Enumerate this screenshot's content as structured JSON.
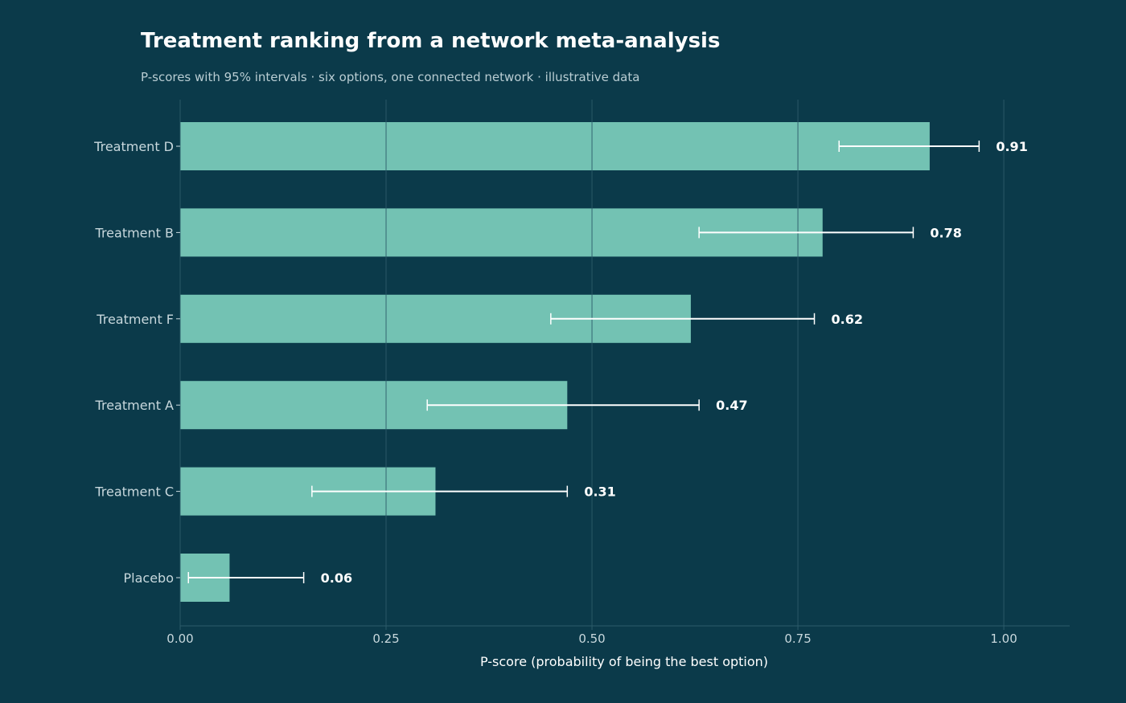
{
  "colors": {
    "background": "#0b3a4a",
    "bar": "#73c2b3",
    "error_bar": "#ffffff",
    "grid": "#2d5c6a",
    "text": "#ffffff",
    "muted_text": "#c8d8dd"
  },
  "chart_data": {
    "type": "bar",
    "orientation": "horizontal",
    "title": "Treatment ranking from a network meta-analysis",
    "subtitle": "P-scores with 95% intervals  ·  six options, one connected network  ·  illustrative data",
    "xlabel": "P-score (probability of being the best option)",
    "ylabel": "",
    "xlim": [
      0,
      1.08
    ],
    "xticks": [
      0.0,
      0.25,
      0.5,
      0.75,
      1.0
    ],
    "xtick_labels": [
      "0.00",
      "0.25",
      "0.50",
      "0.75",
      "1.00"
    ],
    "grid": "vertical",
    "categories": [
      "Treatment D",
      "Treatment B",
      "Treatment F",
      "Treatment A",
      "Treatment C",
      "Placebo"
    ],
    "values": [
      0.91,
      0.78,
      0.62,
      0.47,
      0.31,
      0.06
    ],
    "value_labels": [
      "0.91",
      "0.78",
      "0.62",
      "0.47",
      "0.31",
      "0.06"
    ],
    "ci_low": [
      0.8,
      0.63,
      0.45,
      0.3,
      0.16,
      0.01
    ],
    "ci_high": [
      0.97,
      0.89,
      0.77,
      0.63,
      0.47,
      0.15
    ]
  }
}
